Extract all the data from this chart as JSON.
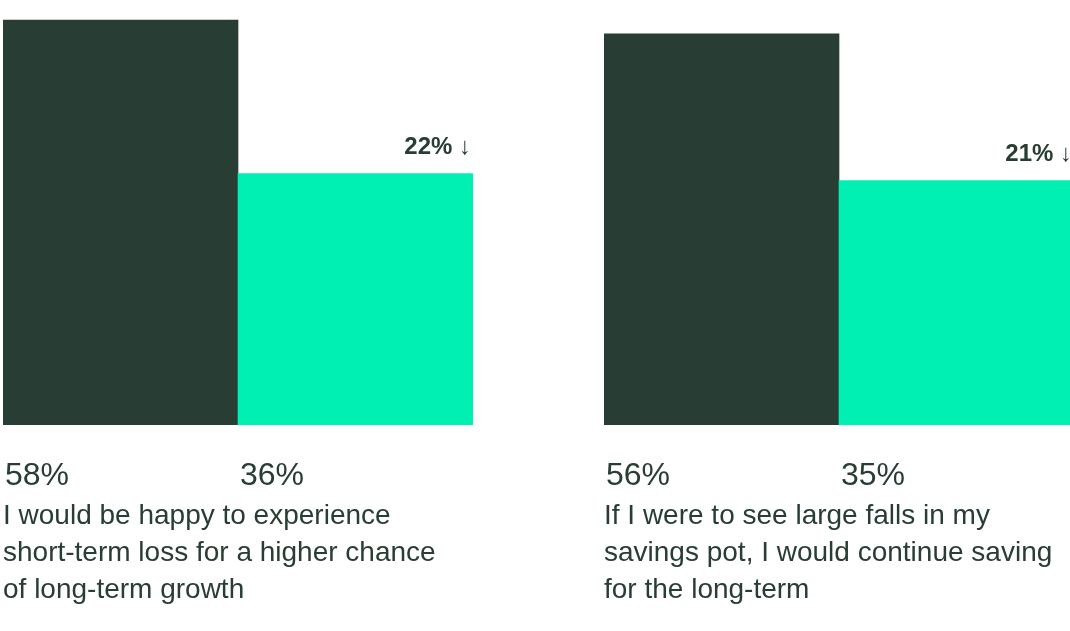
{
  "chart_data": [
    {
      "type": "bar",
      "categories": [
        null,
        null
      ],
      "colors": [
        "#283d33",
        "#00f0b4"
      ],
      "values": [
        58,
        36
      ],
      "value_labels": [
        "58%",
        "36%"
      ],
      "xlabel": "I would be happy to experience short-term loss for a higher chance of long-term growth",
      "annotations": [
        "22% ↓"
      ]
    },
    {
      "type": "bar",
      "categories": [
        null,
        null
      ],
      "colors": [
        "#283d33",
        "#00f0b4"
      ],
      "values": [
        56,
        35
      ],
      "value_labels": [
        "56%",
        "35%"
      ],
      "xlabel": "If I were to see large falls in my savings pot, I would continue saving for the long-term",
      "annotations": [
        "21% ↓"
      ]
    }
  ]
}
